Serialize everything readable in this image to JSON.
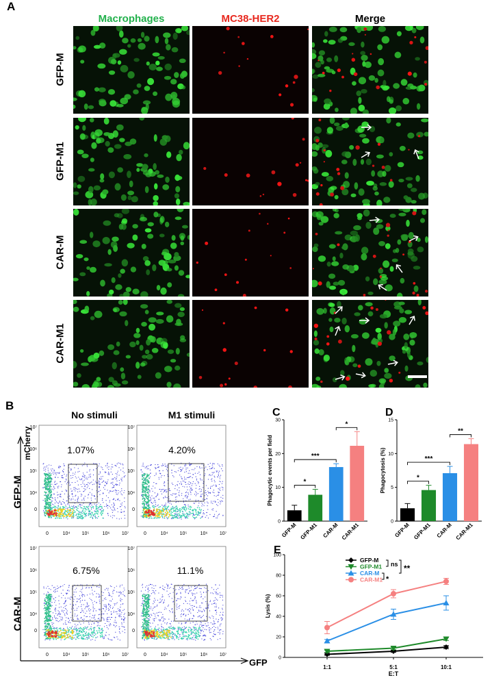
{
  "panel_a": {
    "letter": "A",
    "columns": [
      "Macrophages",
      "MC38-HER2",
      "Merge"
    ],
    "column_colors": [
      "#22b14c",
      "#e8281e",
      "#000000"
    ],
    "rows": [
      "GFP-M",
      "GFP-M1",
      "CAR-M",
      "CAR-M1"
    ]
  },
  "panel_b": {
    "letter": "B",
    "col_titles": [
      "No stimuli",
      "M1 stimuli"
    ],
    "row_labels": [
      "GFP-M",
      "CAR-M"
    ],
    "y_axis": "mCherry",
    "x_axis": "GFP",
    "gates": [
      "1.07%",
      "4.20%",
      "6.75%",
      "11.1%"
    ],
    "y_ticks": [
      "10⁷",
      "10⁶",
      "10⁵",
      "10⁴",
      "0"
    ],
    "x_ticks": [
      "0",
      "10⁴",
      "10⁵",
      "10⁶",
      "10⁷"
    ]
  },
  "chart_data": [
    {
      "letter": "C",
      "type": "bar",
      "ylabel": "Phagocytic events per field",
      "categories": [
        "GFP-M",
        "GFP-M1",
        "CAR-M",
        "CAR-M1"
      ],
      "values": [
        3.2,
        7.8,
        16.0,
        22.3
      ],
      "errors": [
        1.5,
        1.6,
        1.0,
        4.2
      ],
      "colors": [
        "#000000",
        "#1e8a2a",
        "#2a8fe6",
        "#f58080"
      ],
      "ylim": [
        0,
        30
      ],
      "yticks": [
        "0",
        "10",
        "20",
        "30"
      ],
      "significance": [
        "*",
        "***",
        "*"
      ]
    },
    {
      "letter": "D",
      "type": "bar",
      "ylabel": "Phagocytosis (%)",
      "categories": [
        "GFP-M",
        "GFP-M1",
        "CAR-M",
        "CAR-M1"
      ],
      "values": [
        1.9,
        4.6,
        7.1,
        11.4
      ],
      "errors": [
        0.7,
        0.7,
        1.0,
        0.8
      ],
      "colors": [
        "#000000",
        "#1e8a2a",
        "#2a8fe6",
        "#f58080"
      ],
      "ylim": [
        0,
        15
      ],
      "yticks": [
        "0",
        "5",
        "10",
        "15"
      ],
      "significance": [
        "*",
        "***",
        "**"
      ]
    },
    {
      "letter": "E",
      "type": "line",
      "ylabel": "Lysis (%)",
      "xlabel": "E:T",
      "categories": [
        "1:1",
        "5:1",
        "10:1"
      ],
      "ylim": [
        0,
        100
      ],
      "yticks": [
        "0",
        "20",
        "40",
        "60",
        "80",
        "100"
      ],
      "series": [
        {
          "name": "GFP-M",
          "values": [
            3,
            6,
            10
          ],
          "errors": [
            1,
            1,
            1.5
          ],
          "color": "#000000",
          "marker": "diamond"
        },
        {
          "name": "GFP-M1",
          "values": [
            6,
            9,
            18
          ],
          "errors": [
            1,
            1.5,
            1.5
          ],
          "color": "#1e8a2a",
          "marker": "triangle-down"
        },
        {
          "name": "CAR-M",
          "values": [
            16,
            42,
            53
          ],
          "errors": [
            1.5,
            5,
            7
          ],
          "color": "#2a8fe6",
          "marker": "triangle-up"
        },
        {
          "name": "CAR-M1",
          "values": [
            29,
            62,
            74
          ],
          "errors": [
            6,
            4,
            3
          ],
          "color": "#f58080",
          "marker": "circle"
        }
      ],
      "significance": [
        "ns",
        "*",
        "**"
      ]
    }
  ]
}
